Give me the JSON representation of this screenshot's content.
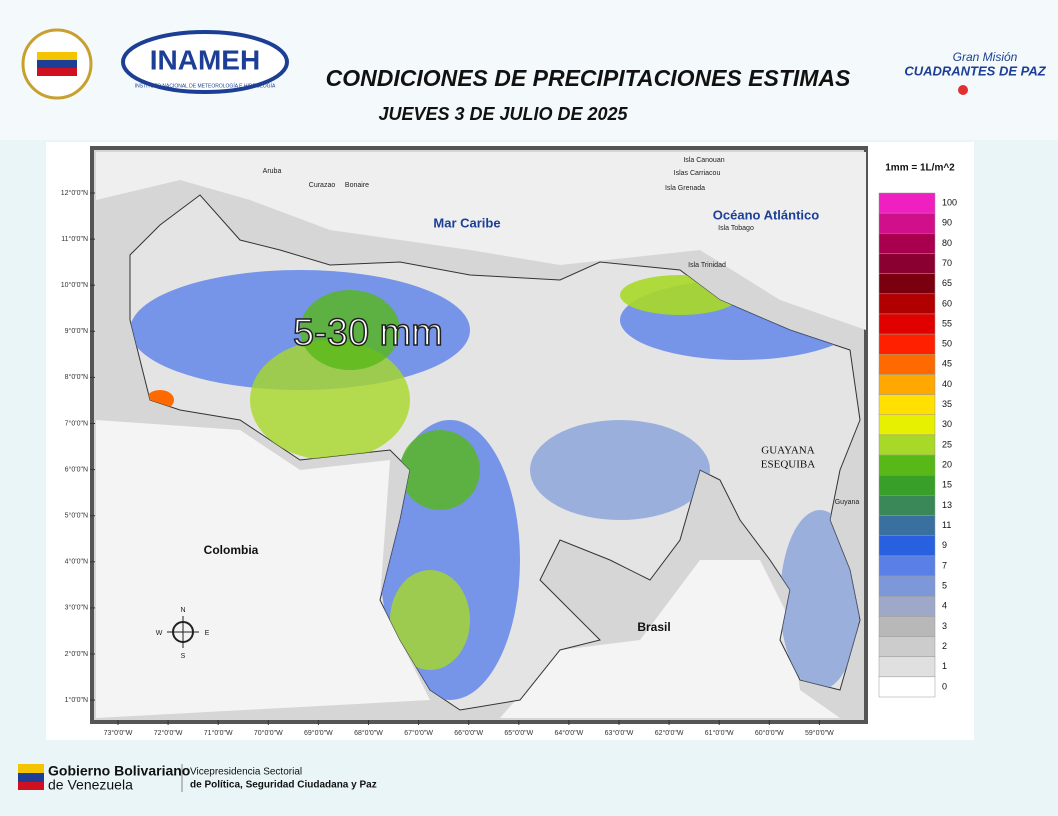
{
  "header": {
    "title": "CONDICIONES DE PRECIPITACIONES ESTIMAS",
    "subtitle": "JUEVES 3 DE JULIO DE 2025",
    "logo_left": "INAMEH",
    "logo_left_caption": "INSTITUTO NACIONAL DE METEOROLOGÍA E HIDROLOGÍA",
    "logo_right_top": "Gran Misión",
    "logo_right_bottom": "CUADRANTES DE PAZ"
  },
  "map": {
    "highlight": "5-30 mm",
    "labels": {
      "sea": "Mar Caribe",
      "ocean": "Océano Atlántico",
      "colombia": "Colombia",
      "brasil": "Brasil",
      "guayana1": "GUAYANA",
      "guayana2": "ESEQUIBA",
      "guyana": "Guyana",
      "aruba": "Aruba",
      "curazao": "Curazao",
      "bonaire": "Bonaire",
      "canouan": "Isla Canouan",
      "carriacou": "Islas Carriacou",
      "grenada": "Isla Grenada",
      "tobago": "Isla Tobago",
      "trinidad": "Isla Trinidad"
    },
    "compass": {
      "n": "N",
      "s": "S",
      "e": "E",
      "w": "W"
    },
    "lat_ticks": [
      "12°0'0\"N",
      "11°0'0\"N",
      "10°0'0\"N",
      "9°0'0\"N",
      "8°0'0\"N",
      "7°0'0\"N",
      "6°0'0\"N",
      "5°0'0\"N",
      "4°0'0\"N",
      "3°0'0\"N",
      "2°0'0\"N",
      "1°0'0\"N"
    ],
    "lon_ticks": [
      "73°0'0\"W",
      "72°0'0\"W",
      "71°0'0\"W",
      "70°0'0\"W",
      "69°0'0\"W",
      "68°0'0\"W",
      "67°0'0\"W",
      "66°0'0\"W",
      "65°0'0\"W",
      "64°0'0\"W",
      "63°0'0\"W",
      "62°0'0\"W",
      "61°0'0\"W",
      "60°0'0\"W",
      "59°0'0\"W"
    ]
  },
  "legend": {
    "title": "1mm = 1L/m^2",
    "items": [
      {
        "label": 100,
        "color": "#f020c0"
      },
      {
        "label": 90,
        "color": "#d0108a"
      },
      {
        "label": 80,
        "color": "#a8004f"
      },
      {
        "label": 70,
        "color": "#8a0030"
      },
      {
        "label": 65,
        "color": "#7a0010"
      },
      {
        "label": 60,
        "color": "#b00000"
      },
      {
        "label": 55,
        "color": "#e00000"
      },
      {
        "label": 50,
        "color": "#ff2000"
      },
      {
        "label": 45,
        "color": "#ff6a00"
      },
      {
        "label": 40,
        "color": "#ffa800"
      },
      {
        "label": 35,
        "color": "#ffe000"
      },
      {
        "label": 30,
        "color": "#e6f000"
      },
      {
        "label": 25,
        "color": "#a8d828"
      },
      {
        "label": 20,
        "color": "#58b818"
      },
      {
        "label": 15,
        "color": "#38a028"
      },
      {
        "label": 13,
        "color": "#3a8858"
      },
      {
        "label": 11,
        "color": "#3a70a0"
      },
      {
        "label": 9,
        "color": "#2860e0"
      },
      {
        "label": 7,
        "color": "#5a80e8"
      },
      {
        "label": 5,
        "color": "#7c98d8"
      },
      {
        "label": 4,
        "color": "#9ea8c8"
      },
      {
        "label": 3,
        "color": "#b8b8b8"
      },
      {
        "label": 2,
        "color": "#cccccc"
      },
      {
        "label": 1,
        "color": "#e0e0e0"
      },
      {
        "label": 0,
        "color": "#ffffff"
      }
    ]
  },
  "footer": {
    "gov1": "Gobierno Bolivariano",
    "gov2": "de Venezuela",
    "vice1": "Vicepresidencia Sectorial",
    "vice2": "de Política, Seguridad Ciudadana y Paz"
  }
}
